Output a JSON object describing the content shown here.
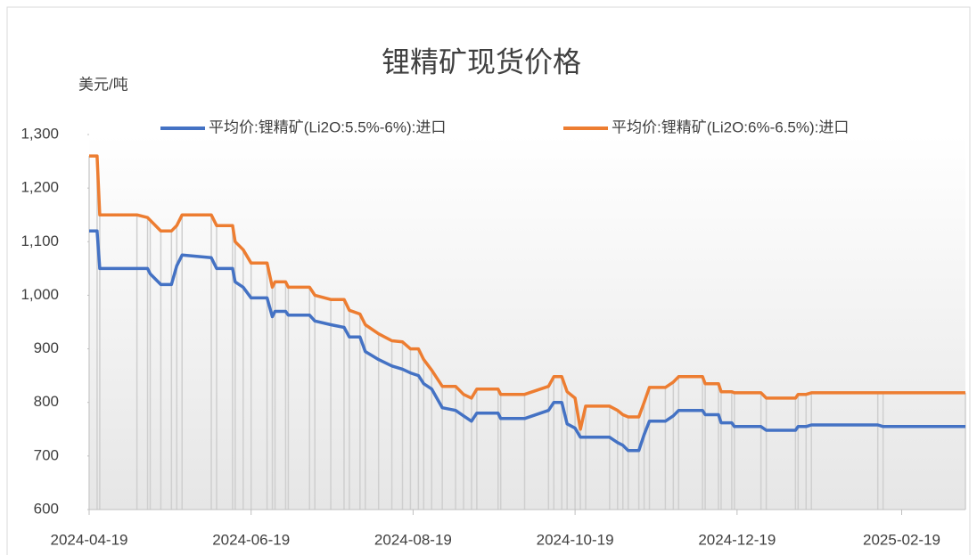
{
  "chart_data": {
    "type": "line",
    "title": "锂精矿现货价格",
    "y_axis_label": "美元/吨",
    "x": [
      "2024-04-19",
      "2024-04-22",
      "2024-04-23",
      "2024-05-07",
      "2024-05-11",
      "2024-05-12",
      "2024-05-16",
      "2024-05-20",
      "2024-05-22",
      "2024-05-24",
      "2024-06-04",
      "2024-06-06",
      "2024-06-12",
      "2024-06-13",
      "2024-06-16",
      "2024-06-19",
      "2024-06-25",
      "2024-06-27",
      "2024-06-28",
      "2024-07-02",
      "2024-07-03",
      "2024-07-11",
      "2024-07-13",
      "2024-07-19",
      "2024-07-24",
      "2024-07-26",
      "2024-07-30",
      "2024-08-01",
      "2024-08-06",
      "2024-08-11",
      "2024-08-15",
      "2024-08-18",
      "2024-08-21",
      "2024-08-23",
      "2024-08-26",
      "2024-08-30",
      "2024-09-04",
      "2024-09-07",
      "2024-09-10",
      "2024-09-12",
      "2024-09-20",
      "2024-09-21",
      "2024-09-30",
      "2024-10-09",
      "2024-10-11",
      "2024-10-14",
      "2024-10-16",
      "2024-10-19",
      "2024-10-21",
      "2024-10-23",
      "2024-11-01",
      "2024-11-04",
      "2024-11-06",
      "2024-11-08",
      "2024-11-12",
      "2024-11-14",
      "2024-11-16",
      "2024-11-22",
      "2024-11-25",
      "2024-11-27",
      "2024-12-06",
      "2024-12-07",
      "2024-12-12",
      "2024-12-13",
      "2024-12-17",
      "2024-12-18",
      "2024-12-28",
      "2024-12-30",
      "2025-01-10",
      "2025-01-11",
      "2025-01-14",
      "2025-01-16",
      "2025-02-10",
      "2025-02-12",
      "2025-03-15"
    ],
    "series": [
      {
        "name": "平均价:锂精矿(Li2O:5.5%-6%):进口",
        "color": "#4472c4",
        "values": [
          1120,
          1120,
          1050,
          1050,
          1050,
          1040,
          1020,
          1020,
          1055,
          1075,
          1070,
          1050,
          1050,
          1025,
          1015,
          995,
          995,
          960,
          970,
          970,
          963,
          963,
          952,
          945,
          940,
          922,
          922,
          895,
          880,
          868,
          862,
          855,
          850,
          835,
          825,
          790,
          785,
          775,
          765,
          780,
          780,
          770,
          770,
          785,
          800,
          800,
          760,
          752,
          735,
          735,
          735,
          725,
          720,
          710,
          710,
          740,
          765,
          765,
          775,
          785,
          785,
          777,
          777,
          762,
          762,
          755,
          755,
          748,
          748,
          755,
          755,
          758,
          758,
          755,
          755
        ]
      },
      {
        "name": "平均价:锂精矿(Li2O:6%-6.5%):进口",
        "color": "#ed7d31",
        "values": [
          1260,
          1260,
          1150,
          1150,
          1145,
          1140,
          1120,
          1120,
          1130,
          1150,
          1150,
          1130,
          1130,
          1100,
          1085,
          1060,
          1060,
          1015,
          1025,
          1025,
          1015,
          1015,
          1000,
          992,
          992,
          972,
          965,
          945,
          928,
          915,
          913,
          900,
          900,
          880,
          860,
          830,
          830,
          815,
          808,
          825,
          825,
          815,
          815,
          830,
          848,
          848,
          820,
          808,
          750,
          793,
          793,
          785,
          777,
          773,
          773,
          800,
          828,
          828,
          838,
          848,
          848,
          835,
          835,
          820,
          820,
          818,
          818,
          808,
          808,
          815,
          815,
          818,
          818,
          818,
          818
        ]
      }
    ],
    "xlim": [
      "2024-04-19",
      "2025-03-15"
    ],
    "xticks": [
      "2024-04-19",
      "2024-06-19",
      "2024-08-19",
      "2024-10-19",
      "2024-12-19",
      "2025-02-19"
    ],
    "ylim": [
      600,
      1300
    ],
    "yticks": [
      600,
      700,
      800,
      900,
      {
        "value": 1000,
        "label": "1,000"
      },
      {
        "value": 1100,
        "label": "1,100"
      },
      {
        "value": 1200,
        "label": "1,200"
      },
      {
        "value": 1300,
        "label": "1,300"
      }
    ],
    "legend": "top"
  }
}
